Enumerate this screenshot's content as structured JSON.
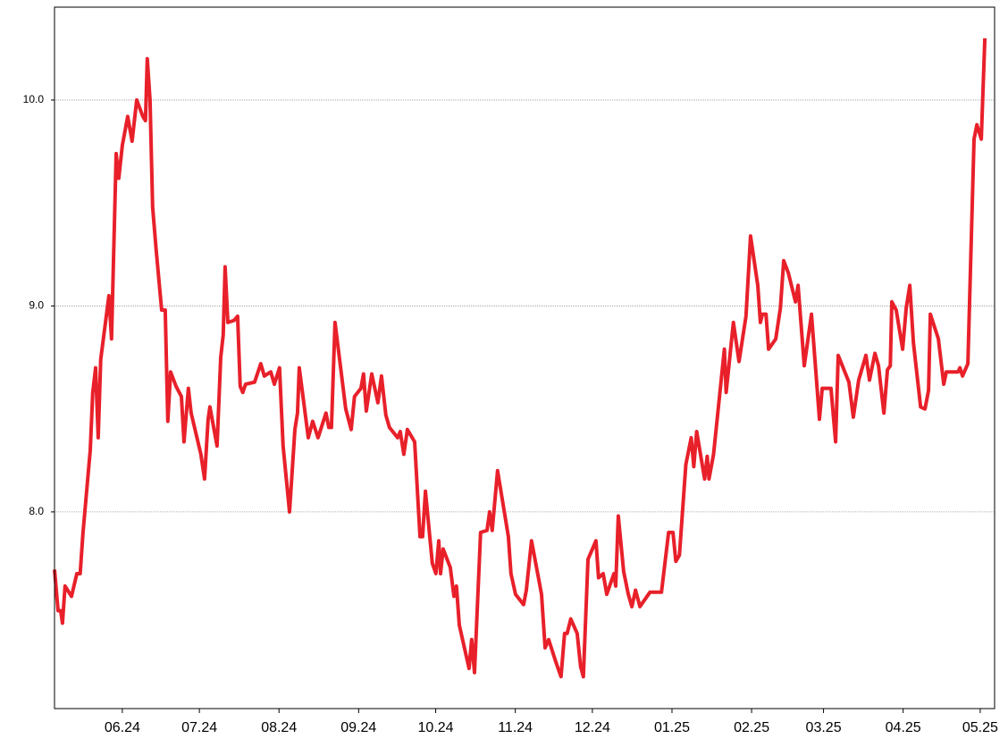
{
  "chart_data": {
    "type": "line",
    "color": "#e8202a",
    "grid": true,
    "xlim": [
      -26.4,
      339.6
    ],
    "ylim": [
      7.045,
      10.451
    ],
    "yticks": [
      {
        "value": 8,
        "label": "8.0"
      },
      {
        "value": 9,
        "label": "9.0"
      },
      {
        "value": 10,
        "label": "10.0"
      }
    ],
    "xticks": [
      {
        "value": 0,
        "label": "06.24"
      },
      {
        "value": 30,
        "label": "07.24"
      },
      {
        "value": 61,
        "label": "08.24"
      },
      {
        "value": 92,
        "label": "09.24"
      },
      {
        "value": 122,
        "label": "10.24"
      },
      {
        "value": 153,
        "label": "11.24"
      },
      {
        "value": 183,
        "label": "12.24"
      },
      {
        "value": 214,
        "label": "01.25"
      },
      {
        "value": 245,
        "label": "02.25"
      },
      {
        "value": 273,
        "label": "03.25"
      },
      {
        "value": 304,
        "label": "04.25"
      },
      {
        "value": 334,
        "label": "05.25"
      }
    ],
    "x": [
      -26.4,
      -25,
      -24,
      -23.3,
      -22.3,
      -19.8,
      -17.7,
      -16.4,
      -15.3,
      -12.5,
      -11.5,
      -10.4,
      -9.4,
      -8.4,
      -5.2,
      -4.2,
      -2.4,
      -1.4,
      0,
      2.1,
      3.8,
      5.6,
      8.0,
      9.0,
      9.7,
      10.8,
      11.8,
      13.2,
      15.3,
      16.7,
      17.7,
      18.8,
      20.9,
      23.0,
      24.0,
      25.7,
      26.8,
      30.6,
      32.0,
      33.4,
      34.1,
      36.9,
      38.3,
      39.3,
      40.0,
      41.1,
      43.5,
      44.9,
      45.9,
      46.9,
      48.0,
      51.5,
      53.9,
      55.3,
      57.8,
      59.2,
      61.2,
      62.6,
      65.1,
      67.2,
      68.2,
      68.9,
      72.4,
      74.1,
      76.2,
      79.3,
      80.4,
      81.4,
      82.8,
      87.0,
      89.1,
      90.4,
      92.9,
      93.9,
      95.0,
      97.1,
      99.5,
      100.9,
      102.6,
      104.0,
      107.2,
      108.2,
      109.6,
      111.0,
      113.8,
      115.9,
      116.9,
      118.0,
      120.7,
      122.1,
      123.2,
      123.9,
      124.9,
      127.7,
      129.1,
      130.1,
      131.2,
      135.0,
      136.0,
      137.1,
      139.5,
      142.0,
      143.0,
      144.0,
      146.1,
      150.3,
      151.3,
      153.1,
      156.2,
      157.3,
      159.3,
      163.2,
      164.6,
      166.0,
      168.8,
      170.8,
      172.2,
      173.2,
      174.6,
      177.1,
      178.4,
      179.5,
      181.3,
      184.4,
      185.4,
      187.2,
      188.6,
      191.4,
      192.1,
      193.1,
      195.2,
      197.0,
      198.4,
      199.8,
      201.5,
      205.4,
      209.9,
      212.7,
      214.4,
      215.5,
      216.9,
      219.4,
      221.5,
      222.5,
      223.6,
      226.7,
      227.7,
      228.4,
      230.2,
      234.4,
      235.1,
      237.9,
      240.1,
      242.8,
      244.6,
      247.4,
      248.4,
      249.2,
      250.6,
      251.6,
      254.4,
      256.2,
      257.5,
      259.3,
      262.1,
      263.1,
      265.5,
      268.3,
      271.4,
      272.5,
      275.9,
      277.7,
      278.7,
      282.9,
      284.6,
      286.7,
      289.5,
      290.9,
      293.0,
      294.4,
      296.5,
      297.9,
      299.0,
      299.6,
      301.3,
      303.8,
      305.2,
      306.6,
      308.0,
      310.8,
      312.5,
      313.9,
      314.6,
      317.7,
      319.8,
      320.8,
      325.4,
      326.1,
      327.1,
      329.2,
      331.6,
      332.7,
      334.4,
      335.8
    ],
    "values": [
      7.72,
      7.52,
      7.52,
      7.46,
      7.64,
      7.59,
      7.7,
      7.7,
      7.9,
      8.3,
      8.58,
      8.7,
      8.36,
      8.74,
      9.05,
      8.84,
      9.74,
      9.62,
      9.78,
      9.92,
      9.8,
      10.0,
      9.92,
      9.9,
      10.2,
      10.0,
      9.48,
      9.27,
      8.98,
      8.98,
      8.44,
      8.68,
      8.61,
      8.56,
      8.34,
      8.6,
      8.48,
      8.28,
      8.16,
      8.45,
      8.51,
      8.32,
      8.75,
      8.86,
      9.19,
      8.92,
      8.93,
      8.95,
      8.61,
      8.58,
      8.62,
      8.63,
      8.72,
      8.66,
      8.68,
      8.62,
      8.7,
      8.32,
      8.0,
      8.4,
      8.48,
      8.7,
      8.36,
      8.44,
      8.36,
      8.48,
      8.41,
      8.41,
      8.92,
      8.5,
      8.4,
      8.56,
      8.6,
      8.67,
      8.49,
      8.67,
      8.53,
      8.66,
      8.47,
      8.41,
      8.36,
      8.39,
      8.28,
      8.4,
      8.34,
      7.88,
      7.88,
      8.1,
      7.75,
      7.7,
      7.86,
      7.7,
      7.82,
      7.73,
      7.59,
      7.64,
      7.45,
      7.24,
      7.38,
      7.22,
      7.9,
      7.91,
      8.0,
      7.91,
      8.2,
      7.88,
      7.7,
      7.6,
      7.55,
      7.62,
      7.86,
      7.6,
      7.34,
      7.38,
      7.27,
      7.2,
      7.41,
      7.41,
      7.48,
      7.41,
      7.25,
      7.2,
      7.77,
      7.86,
      7.68,
      7.7,
      7.6,
      7.7,
      7.64,
      7.98,
      7.71,
      7.6,
      7.54,
      7.62,
      7.54,
      7.61,
      7.61,
      7.9,
      7.9,
      7.76,
      7.79,
      8.23,
      8.36,
      8.22,
      8.39,
      8.16,
      8.27,
      8.16,
      8.28,
      8.79,
      8.58,
      8.92,
      8.73,
      8.95,
      9.34,
      9.1,
      8.92,
      8.96,
      8.96,
      8.79,
      8.84,
      8.99,
      9.22,
      9.16,
      9.02,
      9.1,
      8.71,
      8.96,
      8.45,
      8.6,
      8.6,
      8.34,
      8.76,
      8.63,
      8.46,
      8.64,
      8.76,
      8.64,
      8.77,
      8.71,
      8.48,
      8.69,
      8.71,
      9.02,
      8.98,
      8.79,
      8.99,
      9.1,
      8.82,
      8.51,
      8.5,
      8.59,
      8.96,
      8.84,
      8.62,
      8.68,
      8.68,
      8.7,
      8.66,
      8.72,
      9.81,
      9.88,
      9.81,
      10.3
    ]
  }
}
